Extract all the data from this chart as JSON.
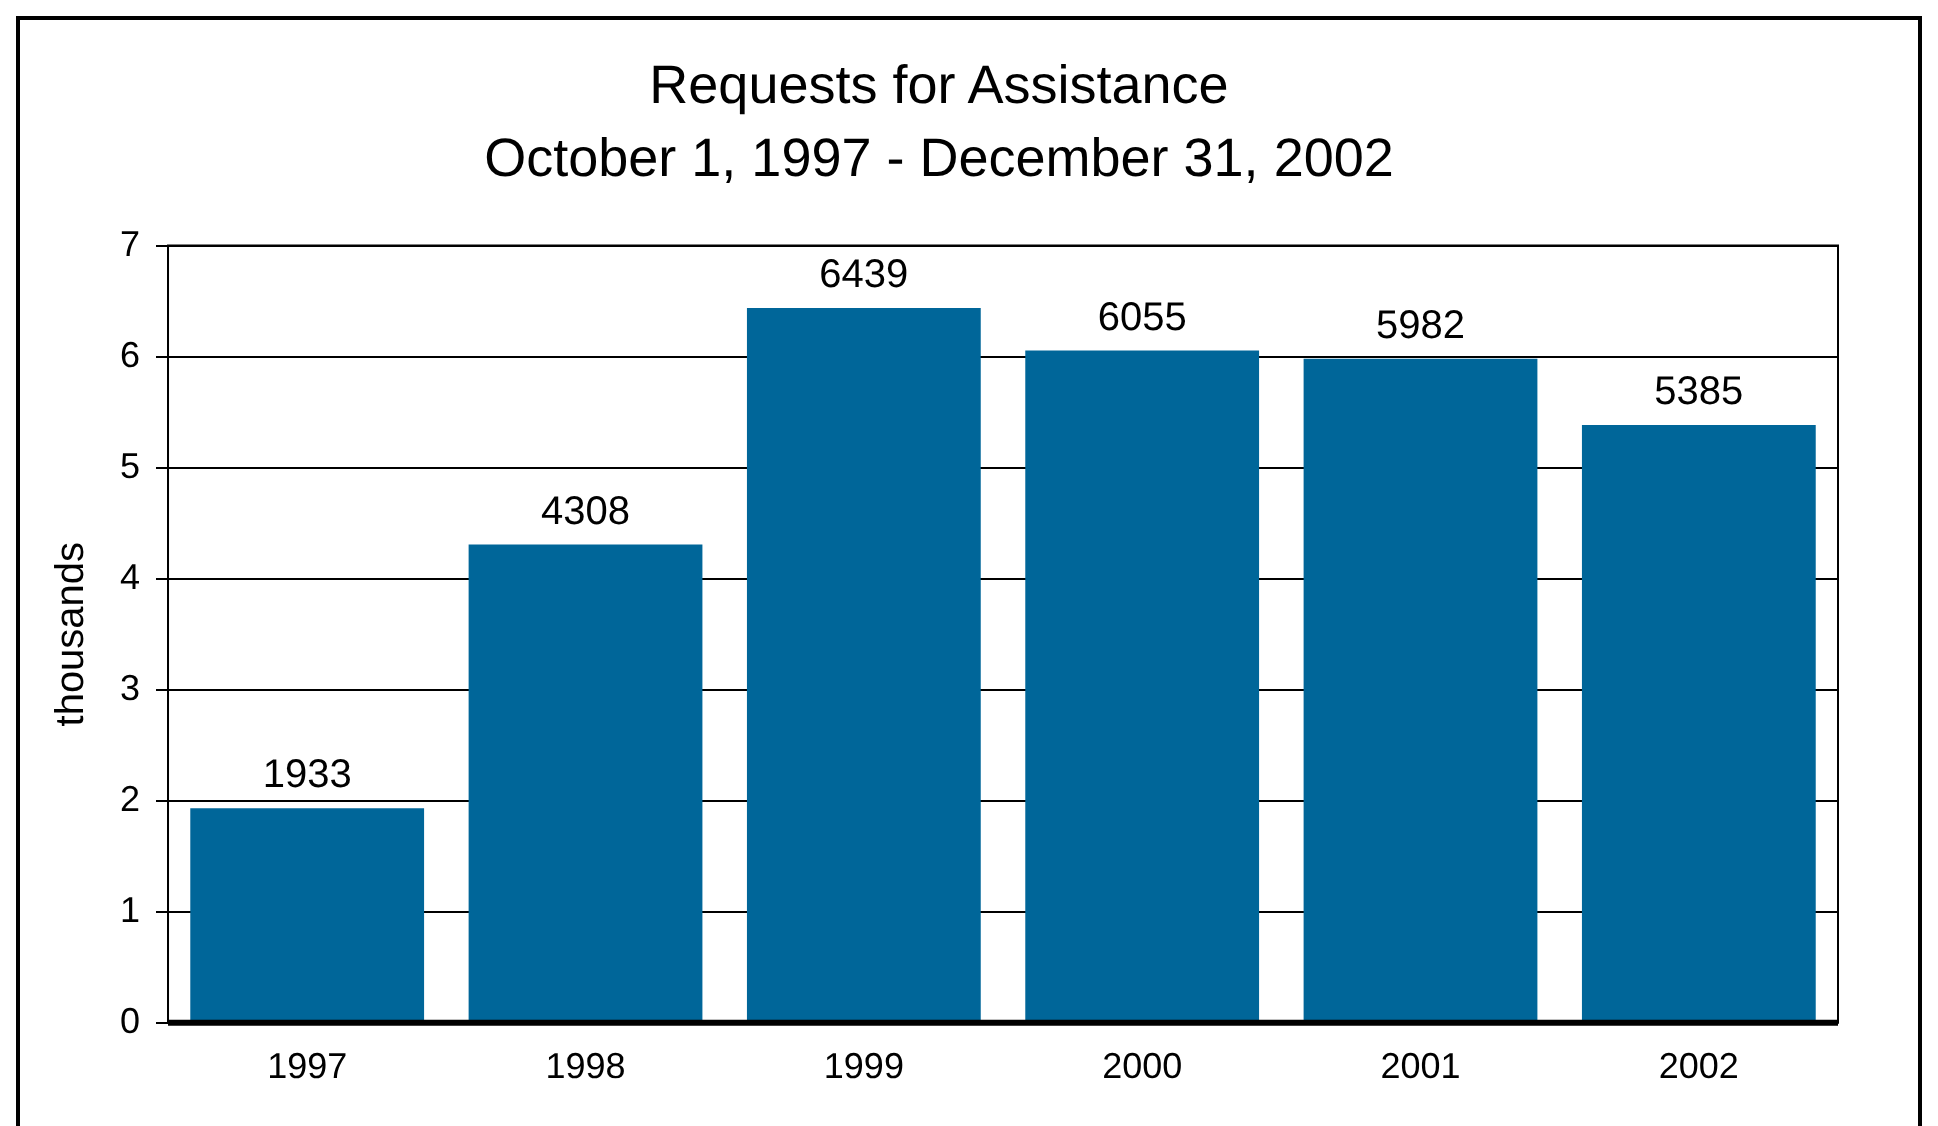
{
  "chart_data": {
    "type": "bar",
    "title": "Requests for Assistance",
    "subtitle": "October 1, 1997 - December 31, 2002",
    "ylabel": "thousands",
    "categories": [
      "1997",
      "1998",
      "1999",
      "2000",
      "2001",
      "2002"
    ],
    "values": [
      1.933,
      4.308,
      6.439,
      6.055,
      5.982,
      5.385
    ],
    "annotations": [
      {
        "text": "1933",
        "x": "1997",
        "y": 1.933
      },
      {
        "text": "4308",
        "x": "1998",
        "y": 4.308
      },
      {
        "text": "6439",
        "x": "1999",
        "y": 6.439
      },
      {
        "text": "6055",
        "x": "2000",
        "y": 6.055
      },
      {
        "text": "5982",
        "x": "2001",
        "y": 5.982
      },
      {
        "text": "5385",
        "x": "2002",
        "y": 5.385
      }
    ],
    "color": "#006699",
    "ylim": [
      0,
      7
    ],
    "yticks": [
      0,
      1,
      2,
      3,
      4,
      5,
      6,
      7
    ],
    "grid": "y",
    "legend": false
  }
}
